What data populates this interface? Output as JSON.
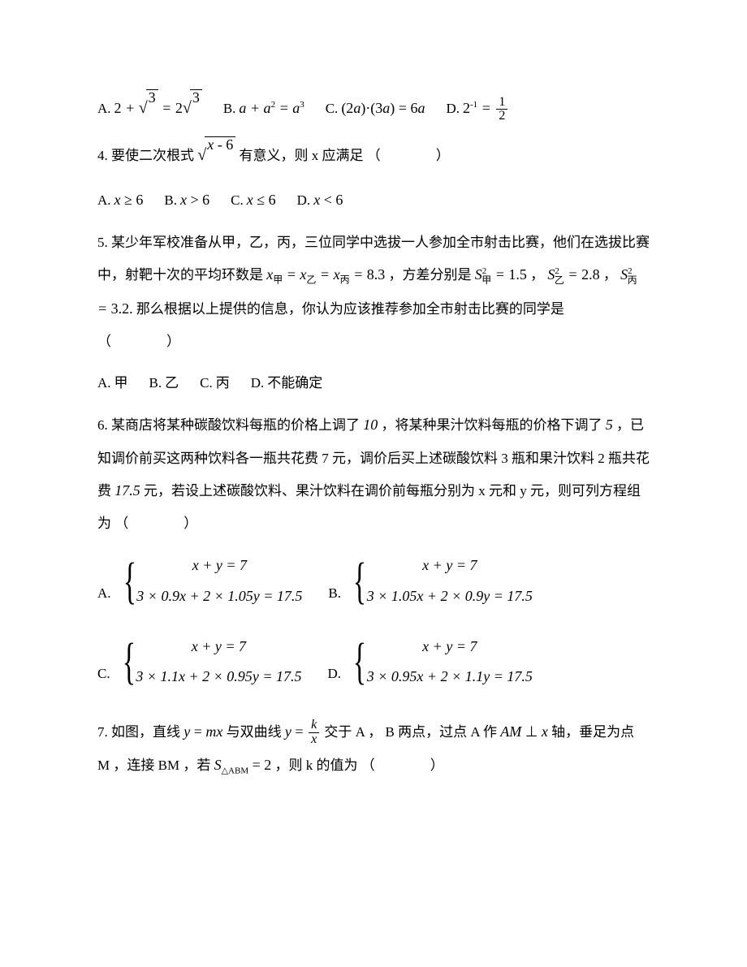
{
  "q3_options": {
    "A_label": "A.",
    "A_expr": "2 + √3 = 2√3",
    "B_label": "B.",
    "B_expr": "a + a² = a³",
    "C_label": "C.",
    "C_expr": "(2a)·(3a) = 6a",
    "D_label": "D.",
    "D_expr": "2⁻¹ = 1/2"
  },
  "q4": {
    "number": "4.",
    "text_pre": " 要使二次根式 ",
    "sqrt_content": "x - 6",
    "text_post": " 有意义，则 x 应满足",
    "A_label": "A.",
    "A_expr": "x ≥ 6",
    "B_label": "B.",
    "B_expr": "x > 6",
    "C_label": "C.",
    "C_expr": "x ≤ 6",
    "D_label": "D.",
    "D_expr": "x < 6"
  },
  "q5": {
    "number": "5.",
    "text1": " 某少年军校准备从甲，乙，丙，三位同学中选拔一人参加全市射击比赛，他们在选拔比赛中，射靶十次的平均环数是 ",
    "mean_expr": "x甲 = x乙 = x丙 = 8.3",
    "text2": " ，方差分别是",
    "var1": "S²甲 = 1.5",
    "comma1": " ， ",
    "var2": "S²乙 = 2.8",
    "comma2": " ， ",
    "var3": "S²丙 = 3.2.",
    "text3": " 那么根据以上提供的信息，你认为应该推荐参加全市射击比赛的同学是",
    "A_label": "A.",
    "A_text": "甲",
    "B_label": "B.",
    "B_text": "乙",
    "C_label": "C.",
    "C_text": "丙",
    "D_label": "D.",
    "D_text": "不能确定"
  },
  "q6": {
    "number": "6.",
    "text1": " 某商店将某种碳酸饮料每瓶的价格上调了 ",
    "pct1": "10",
    "text2": " ，将某种果汁饮料每瓶的价格下调了 ",
    "pct2": "5",
    "text3": " ，已知调价前买这两种饮料各一瓶共花费 7 元，调价后买上述碳酸饮料 3 瓶和果汁饮料 2 瓶共花费 ",
    "amount": "17.5",
    "text4": " 元，若设上述碳酸饮料、果汁饮料在调价前每瓶分别为 x 元和 y 元，则可列方程组为",
    "A_label": "A.",
    "A_eq1": "x + y = 7",
    "A_eq2": "3 × 0.9x + 2 × 1.05y = 17.5",
    "B_label": "B.",
    "B_eq1": "x + y = 7",
    "B_eq2": "3 × 1.05x + 2 × 0.9y = 17.5",
    "C_label": "C.",
    "C_eq1": "x + y = 7",
    "C_eq2": "3 × 1.1x + 2 × 0.95y = 17.5",
    "D_label": "D.",
    "D_eq1": "x + y = 7",
    "D_eq2": "3 × 0.95x + 2 × 1.1y = 17.5"
  },
  "q7": {
    "number": "7.",
    "text1": " 如图，直线 ",
    "line_expr": "y = mx",
    "text2": " 与双曲线 ",
    "hyp_expr_num": "k",
    "hyp_expr_den": "x",
    "text3": " 交于 A ， B 两点，过点 A 作 ",
    "perp_expr": "AM ⊥ x",
    "text4": " 轴，垂足为点 M ，连接 BM ，若 ",
    "area_expr": "S△ABM = 2",
    "text5": " ，则 k 的值为"
  },
  "colors": {
    "text": "#000000",
    "background": "#ffffff"
  },
  "fonts": {
    "body": "SimSun",
    "math": "Times New Roman"
  }
}
